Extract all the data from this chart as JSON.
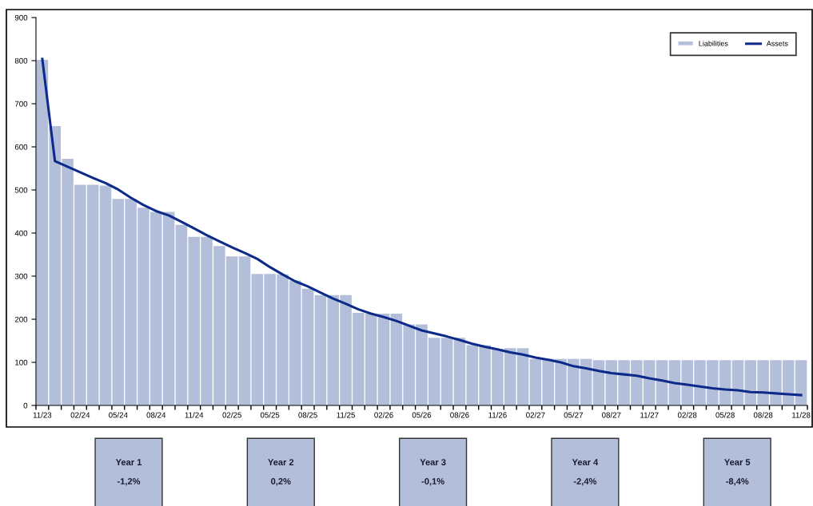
{
  "chart_data": {
    "type": "bar",
    "categories": [
      "11/23",
      null,
      null,
      "02/24",
      null,
      null,
      "05/24",
      null,
      null,
      "08/24",
      null,
      null,
      "11/24",
      null,
      null,
      "02/25",
      null,
      null,
      "05/25",
      null,
      null,
      "08/25",
      null,
      null,
      "11/25",
      null,
      null,
      "02/26",
      null,
      null,
      "05/26",
      null,
      null,
      "08/26",
      null,
      null,
      "11/26",
      null,
      null,
      "02/27",
      null,
      null,
      "05/27",
      null,
      null,
      "08/27",
      null,
      null,
      "11/27",
      null,
      null,
      "02/28",
      null,
      null,
      "05/28",
      null,
      null,
      "08/28",
      null,
      null,
      "11/28"
    ],
    "series": [
      {
        "name": "Liabilities",
        "color": "#b3bfda",
        "values": [
          802,
          648,
          572,
          512,
          512,
          510,
          479,
          479,
          459,
          449,
          449,
          419,
          391,
          391,
          370,
          346,
          346,
          305,
          305,
          304,
          290,
          271,
          256,
          256,
          256,
          215,
          213,
          213,
          213,
          188,
          188,
          157,
          157,
          157,
          140,
          140,
          131,
          133,
          133,
          108,
          108,
          108,
          108,
          108,
          105,
          105,
          105,
          105,
          105,
          105,
          105,
          105,
          105,
          105,
          105,
          105,
          105,
          105,
          105,
          105,
          105
        ]
      },
      {
        "name": "Assets",
        "type": "line",
        "color": "#0d2a8a",
        "values": [
          804,
          567,
          554,
          541,
          528,
          516,
          501,
          482,
          465,
          451,
          441,
          426,
          411,
          395,
          381,
          367,
          354,
          340,
          321,
          304,
          288,
          276,
          262,
          248,
          236,
          223,
          213,
          205,
          196,
          185,
          174,
          167,
          160,
          152,
          143,
          136,
          130,
          123,
          118,
          111,
          106,
          100,
          91,
          86,
          80,
          75,
          72,
          69,
          63,
          58,
          52,
          48,
          44,
          40,
          37,
          35,
          31,
          30,
          28,
          26,
          24
        ]
      }
    ],
    "ylim": [
      0,
      900
    ],
    "yticks": [
      0,
      100,
      200,
      300,
      400,
      500,
      600,
      700,
      800,
      900
    ],
    "grid": false,
    "legend": "top right",
    "marker": "none",
    "line_style": "solid",
    "annotations": [
      "Year 1\n\n-1,2%",
      "Year 2\n\n0,2%",
      "Year 3\n\n-0,1%",
      "Year 4\n\n-2,4%",
      "Year 5\n\n-8,4%"
    ]
  }
}
